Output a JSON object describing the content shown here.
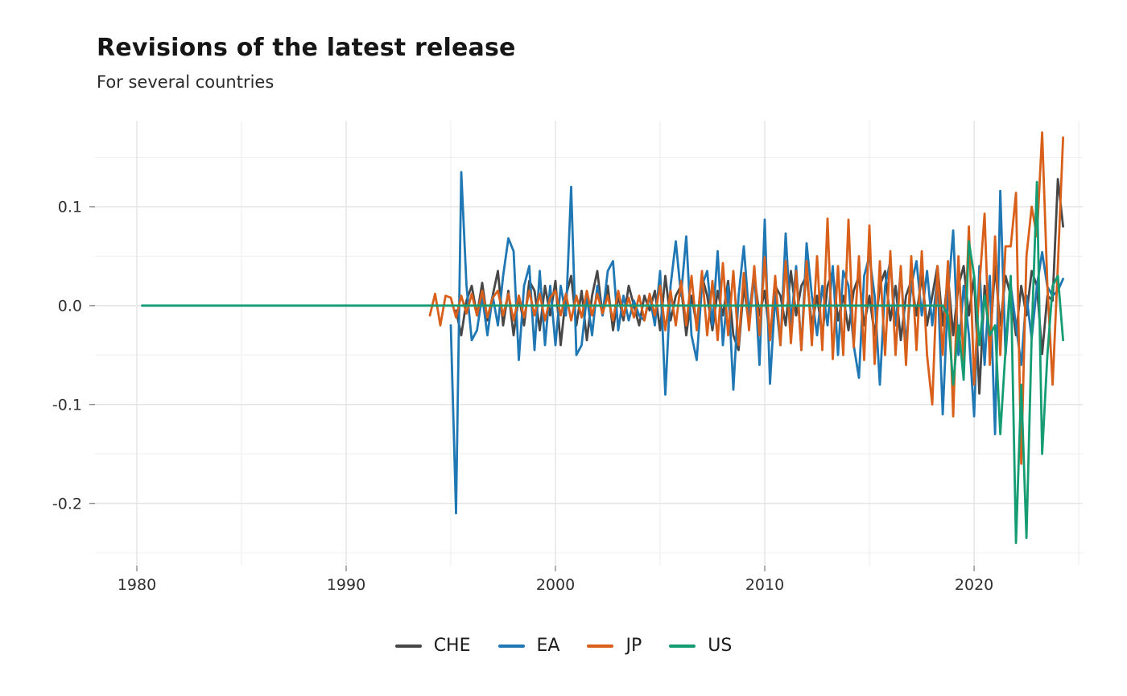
{
  "title": "Revisions of the latest release",
  "subtitle": "For several countries",
  "colors": {
    "background": "#ffffff",
    "grid_major": "#e3e3e3",
    "grid_minor": "#efefef",
    "tick_mark": "#8a8a8a",
    "tick_label": "#303030",
    "title_text": "#161616",
    "subtitle_text": "#2a2a2a",
    "che": "#474747",
    "ea": "#1f77b4",
    "jp": "#d9601a",
    "us": "#169c72"
  },
  "chart_data": {
    "type": "line",
    "title": "Revisions of the latest release",
    "subtitle": "For several countries",
    "xlabel": "",
    "ylabel": "",
    "grid": true,
    "legend_position": "bottom",
    "frequency": "quarterly",
    "xlim": [
      1978.0,
      2025.19
    ],
    "ylim": [
      -0.263,
      0.187
    ],
    "x_ticks": [
      {
        "value": 1980,
        "label": "1980"
      },
      {
        "value": 1990,
        "label": "1990"
      },
      {
        "value": 2000,
        "label": "2000"
      },
      {
        "value": 2010,
        "label": "2010"
      },
      {
        "value": 2020,
        "label": "2020"
      }
    ],
    "x_minor_ticks": [
      1985,
      1995,
      2005,
      2015,
      2025
    ],
    "y_ticks": [
      {
        "value": 0.1,
        "label": "0.1"
      },
      {
        "value": 0.0,
        "label": "0.0"
      },
      {
        "value": -0.1,
        "label": "-0.1"
      },
      {
        "value": -0.2,
        "label": "-0.2"
      }
    ],
    "y_minor_ticks": [
      0.15,
      0.05,
      -0.05,
      -0.15,
      -0.25
    ],
    "series": [
      {
        "name": "CHE",
        "color": "#474747",
        "x_start": 1995.25,
        "x_step": 0.25,
        "values": [
          -0.005,
          -0.03,
          0.005,
          0.02,
          -0.01,
          0.023,
          -0.015,
          0.01,
          0.035,
          -0.02,
          0.015,
          -0.03,
          0.01,
          -0.02,
          0.025,
          0.015,
          -0.025,
          0.02,
          -0.01,
          0.025,
          -0.04,
          0.01,
          0.03,
          -0.02,
          0.015,
          -0.035,
          0.01,
          0.035,
          -0.01,
          0.02,
          -0.025,
          0.01,
          -0.015,
          0.02,
          0.0,
          -0.02,
          0.01,
          -0.005,
          0.015,
          -0.025,
          0.03,
          -0.015,
          0.01,
          0.02,
          -0.03,
          0.01,
          -0.02,
          0.03,
          0.01,
          -0.025,
          0.015,
          -0.01,
          0.025,
          -0.03,
          -0.045,
          0.02,
          -0.02,
          0.03,
          -0.01,
          0.015,
          -0.035,
          0.02,
          0.01,
          -0.02,
          0.035,
          -0.01,
          0.02,
          0.03,
          -0.02,
          0.01,
          -0.03,
          0.02,
          0.035,
          -0.015,
          0.01,
          -0.025,
          0.015,
          0.03,
          -0.02,
          0.01,
          -0.03,
          0.02,
          0.035,
          -0.015,
          0.02,
          -0.035,
          0.01,
          0.025,
          -0.01,
          0.03,
          -0.02,
          0.01,
          0.04,
          -0.02,
          0.03,
          -0.03,
          0.02,
          0.04,
          -0.01,
          0.03,
          -0.089,
          0.02,
          -0.04,
          0.04,
          -0.02,
          0.03,
          0.01,
          -0.03,
          0.02,
          -0.01,
          0.035,
          0.02,
          -0.049,
          0.01,
          0.005,
          0.128,
          0.08
        ]
      },
      {
        "name": "EA",
        "color": "#1f77b4",
        "x_start": 1995.0,
        "x_step": 0.25,
        "values": [
          -0.02,
          -0.21,
          0.135,
          0.02,
          -0.035,
          -0.025,
          0.01,
          -0.03,
          0.01,
          -0.02,
          0.03,
          0.068,
          0.055,
          -0.055,
          0.02,
          0.04,
          -0.045,
          0.035,
          -0.04,
          0.02,
          -0.04,
          0.02,
          -0.01,
          0.12,
          -0.05,
          -0.04,
          0.01,
          -0.03,
          0.02,
          -0.01,
          0.035,
          0.045,
          -0.025,
          0.01,
          -0.015,
          0.005,
          -0.01,
          -0.015,
          0.01,
          -0.02,
          0.035,
          -0.09,
          0.02,
          0.065,
          0.01,
          0.07,
          -0.03,
          -0.055,
          0.02,
          0.035,
          -0.02,
          0.055,
          -0.04,
          0.02,
          -0.085,
          0.01,
          0.06,
          -0.01,
          0.035,
          -0.06,
          0.087,
          -0.079,
          0.01,
          -0.04,
          0.073,
          -0.02,
          0.04,
          -0.045,
          0.063,
          0.01,
          -0.03,
          0.02,
          -0.02,
          0.04,
          -0.05,
          0.035,
          0.02,
          -0.04,
          -0.073,
          0.03,
          0.05,
          0.01,
          -0.08,
          0.02,
          0.045,
          -0.02,
          0.035,
          -0.04,
          0.02,
          0.045,
          -0.01,
          0.035,
          -0.02,
          0.03,
          -0.11,
          0.01,
          0.076,
          -0.05,
          0.02,
          -0.03,
          -0.112,
          0.04,
          -0.06,
          0.03,
          -0.13,
          0.116,
          -0.05,
          0.02,
          -0.02,
          -0.06,
          0.01,
          -0.033,
          0.02,
          0.054,
          0.019,
          0.01,
          0.015,
          0.027
        ]
      },
      {
        "name": "JP",
        "color": "#d9601a",
        "x_start": 1994.0,
        "x_step": 0.25,
        "values": [
          -0.01,
          0.012,
          -0.02,
          0.01,
          0.008,
          -0.012,
          0.01,
          -0.008,
          0.012,
          -0.01,
          0.015,
          -0.012,
          0.008,
          0.015,
          -0.01,
          0.012,
          -0.015,
          0.01,
          -0.012,
          0.015,
          -0.01,
          0.012,
          -0.015,
          0.008,
          0.015,
          -0.01,
          0.012,
          -0.015,
          0.01,
          -0.012,
          0.015,
          -0.01,
          0.012,
          -0.008,
          0.01,
          -0.015,
          0.015,
          -0.01,
          0.008,
          -0.012,
          0.01,
          -0.015,
          0.012,
          -0.01,
          0.02,
          -0.025,
          0.015,
          -0.02,
          0.025,
          -0.02,
          0.03,
          -0.025,
          0.035,
          -0.03,
          0.025,
          -0.035,
          0.043,
          -0.03,
          0.035,
          -0.04,
          0.033,
          -0.025,
          0.04,
          -0.03,
          0.049,
          -0.035,
          0.03,
          -0.04,
          0.045,
          -0.038,
          0.035,
          -0.045,
          0.045,
          -0.04,
          0.05,
          -0.045,
          0.088,
          -0.054,
          0.04,
          -0.05,
          0.087,
          -0.042,
          0.05,
          -0.055,
          0.081,
          -0.059,
          0.045,
          -0.05,
          0.055,
          -0.05,
          0.04,
          -0.06,
          0.05,
          -0.045,
          0.055,
          -0.05,
          -0.1,
          0.04,
          -0.05,
          0.045,
          -0.112,
          0.05,
          -0.06,
          0.08,
          -0.08,
          0.02,
          0.093,
          -0.06,
          0.07,
          -0.05,
          0.06,
          0.06,
          0.114,
          -0.16,
          0.05,
          0.1,
          0.07,
          0.175,
          0.02,
          -0.08,
          0.04,
          0.17
        ]
      },
      {
        "name": "US",
        "color": "#169c72",
        "x_start": 1980.25,
        "x_step": 0.25,
        "values": [
          0,
          0,
          0,
          0,
          0,
          0,
          0,
          0,
          0,
          0,
          0,
          0,
          0,
          0,
          0,
          0,
          0,
          0,
          0,
          0,
          0,
          0,
          0,
          0,
          0,
          0,
          0,
          0,
          0,
          0,
          0,
          0,
          0,
          0,
          0,
          0,
          0,
          0,
          0,
          0,
          0,
          0,
          0,
          0,
          0,
          0,
          0,
          0,
          0,
          0,
          0,
          0,
          0,
          0,
          0,
          0,
          0,
          0,
          0,
          0,
          0,
          0,
          0,
          0,
          0,
          0,
          0,
          0,
          0,
          0,
          0,
          0,
          0,
          0,
          0,
          0,
          0,
          0,
          0,
          0,
          0,
          0,
          0,
          0,
          0,
          0,
          0,
          0,
          0,
          0,
          0,
          0,
          0,
          0,
          0,
          0,
          0,
          0,
          0,
          0,
          0,
          0,
          0,
          0,
          0,
          0,
          0,
          0,
          0,
          0,
          0,
          0,
          0,
          0,
          0,
          0,
          0,
          0,
          0,
          0,
          0,
          0,
          0,
          0,
          0,
          0,
          0,
          0,
          0,
          0,
          0,
          0,
          0,
          0,
          0,
          0,
          0,
          0,
          0,
          0,
          0,
          0,
          0,
          0,
          0,
          0,
          0,
          0,
          0,
          0,
          0,
          0,
          0,
          0,
          -0.01,
          -0.08,
          -0.02,
          -0.075,
          0.065,
          0.03,
          -0.04,
          0.01,
          -0.03,
          -0.02,
          -0.13,
          -0.045,
          0.03,
          -0.24,
          -0.08,
          -0.235,
          -0.03,
          0.125,
          -0.15,
          -0.05,
          0.02,
          0.03,
          -0.035
        ]
      }
    ]
  },
  "legend": {
    "items": [
      "CHE",
      "EA",
      "JP",
      "US"
    ]
  }
}
